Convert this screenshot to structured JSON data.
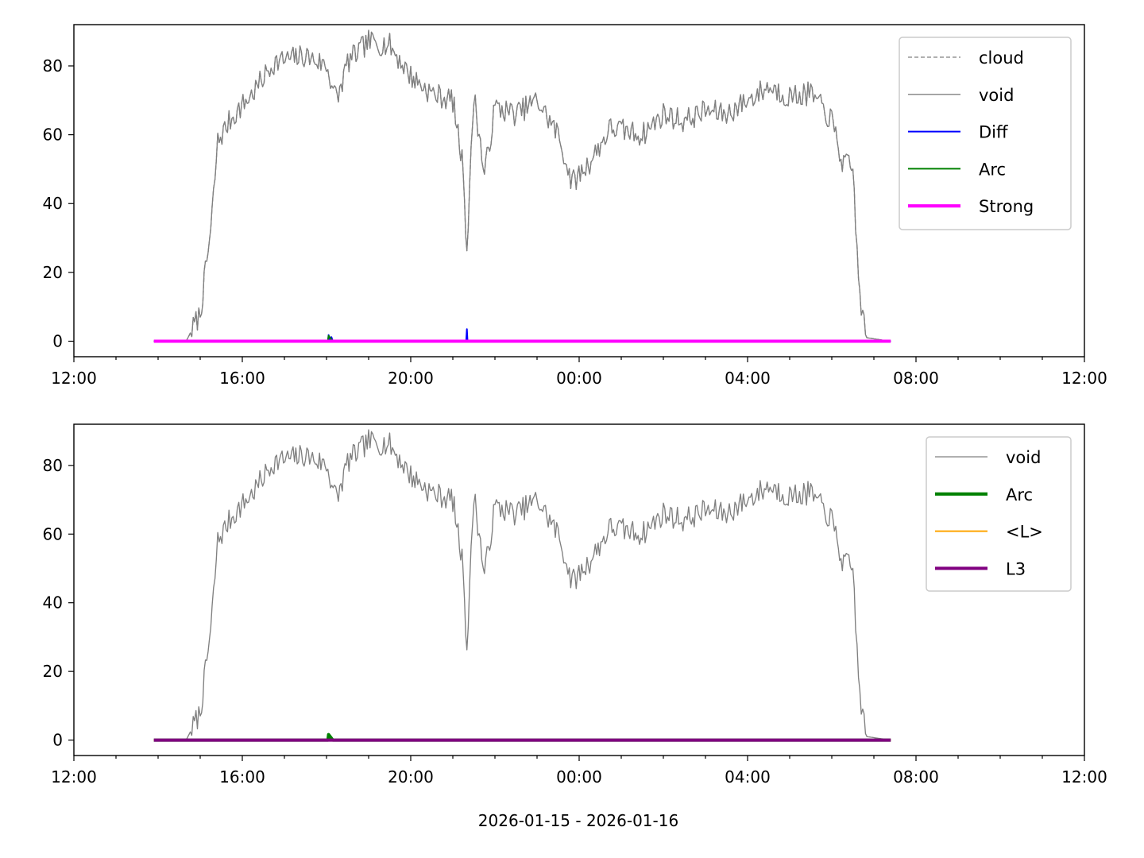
{
  "figure": {
    "xlabel": "2026-01-15 - 2026-01-16"
  },
  "chart_data": [
    {
      "type": "line",
      "x_ticks": [
        "12:00",
        "16:00",
        "20:00",
        "00:00",
        "04:00",
        "08:00",
        "12:00"
      ],
      "xlim": [
        "2026-01-15 12:00",
        "2026-01-16 12:00"
      ],
      "y_ticks": [
        "0",
        "20",
        "40",
        "60",
        "80"
      ],
      "ylim": [
        -4.5,
        92
      ],
      "legend_position": "upper right",
      "series": [
        {
          "name": "cloud",
          "color": "#808080",
          "style": "dashed",
          "width": 1,
          "points": [
            [
              "2026-01-15 13:54",
              0
            ],
            [
              "2026-01-15 14:40",
              0
            ],
            [
              "2026-01-15 15:00",
              8
            ],
            [
              "2026-01-15 15:15",
              32
            ],
            [
              "2026-01-15 15:25",
              58
            ],
            [
              "2026-01-15 15:45",
              65
            ],
            [
              "2026-01-15 16:15",
              72
            ],
            [
              "2026-01-15 16:45",
              81
            ],
            [
              "2026-01-15 17:30",
              83
            ],
            [
              "2026-01-15 18:00",
              80
            ],
            [
              "2026-01-15 18:15",
              70
            ],
            [
              "2026-01-15 18:30",
              81
            ],
            [
              "2026-01-15 19:00",
              87
            ],
            [
              "2026-01-15 19:30",
              86
            ],
            [
              "2026-01-15 20:00",
              77
            ],
            [
              "2026-01-15 20:30",
              72
            ],
            [
              "2026-01-15 21:00",
              70
            ],
            [
              "2026-01-15 21:15",
              50
            ],
            [
              "2026-01-15 21:20",
              26
            ],
            [
              "2026-01-15 21:30",
              72
            ],
            [
              "2026-01-15 21:45",
              48
            ],
            [
              "2026-01-15 22:00",
              68
            ],
            [
              "2026-01-15 22:30",
              66
            ],
            [
              "2026-01-15 23:00",
              70
            ],
            [
              "2026-01-15 23:30",
              60
            ],
            [
              "2026-01-15 23:50",
              46
            ],
            [
              "2026-01-16 00:15",
              52
            ],
            [
              "2026-01-16 00:45",
              62
            ],
            [
              "2026-01-16 01:30",
              60
            ],
            [
              "2026-01-16 02:00",
              66
            ],
            [
              "2026-01-16 02:30",
              64
            ],
            [
              "2026-01-16 03:00",
              67
            ],
            [
              "2026-01-16 03:30",
              66
            ],
            [
              "2026-01-16 04:00",
              70
            ],
            [
              "2026-01-16 04:30",
              74
            ],
            [
              "2026-01-16 05:00",
              71
            ],
            [
              "2026-01-16 05:30",
              72
            ],
            [
              "2026-01-16 06:00",
              64
            ],
            [
              "2026-01-16 06:15",
              52
            ],
            [
              "2026-01-16 06:30",
              50
            ],
            [
              "2026-01-16 06:40",
              12
            ],
            [
              "2026-01-16 06:50",
              1
            ],
            [
              "2026-01-16 07:24",
              0
            ]
          ]
        },
        {
          "name": "void",
          "color": "#808080",
          "style": "solid",
          "width": 1,
          "points": [
            [
              "2026-01-15 13:54",
              0
            ],
            [
              "2026-01-15 14:40",
              0
            ],
            [
              "2026-01-15 15:00",
              8
            ],
            [
              "2026-01-15 15:15",
              32
            ],
            [
              "2026-01-15 15:25",
              58
            ],
            [
              "2026-01-15 15:45",
              65
            ],
            [
              "2026-01-15 16:15",
              72
            ],
            [
              "2026-01-15 16:45",
              81
            ],
            [
              "2026-01-15 17:30",
              83
            ],
            [
              "2026-01-15 18:00",
              80
            ],
            [
              "2026-01-15 18:15",
              70
            ],
            [
              "2026-01-15 18:30",
              81
            ],
            [
              "2026-01-15 19:00",
              87
            ],
            [
              "2026-01-15 19:30",
              86
            ],
            [
              "2026-01-15 20:00",
              77
            ],
            [
              "2026-01-15 20:30",
              72
            ],
            [
              "2026-01-15 21:00",
              70
            ],
            [
              "2026-01-15 21:15",
              50
            ],
            [
              "2026-01-15 21:20",
              26
            ],
            [
              "2026-01-15 21:30",
              72
            ],
            [
              "2026-01-15 21:45",
              48
            ],
            [
              "2026-01-15 22:00",
              68
            ],
            [
              "2026-01-15 22:30",
              66
            ],
            [
              "2026-01-15 23:00",
              70
            ],
            [
              "2026-01-15 23:30",
              60
            ],
            [
              "2026-01-15 23:50",
              46
            ],
            [
              "2026-01-16 00:15",
              52
            ],
            [
              "2026-01-16 00:45",
              62
            ],
            [
              "2026-01-16 01:30",
              60
            ],
            [
              "2026-01-16 02:00",
              66
            ],
            [
              "2026-01-16 02:30",
              64
            ],
            [
              "2026-01-16 03:00",
              67
            ],
            [
              "2026-01-16 03:30",
              66
            ],
            [
              "2026-01-16 04:00",
              70
            ],
            [
              "2026-01-16 04:30",
              74
            ],
            [
              "2026-01-16 05:00",
              71
            ],
            [
              "2026-01-16 05:30",
              72
            ],
            [
              "2026-01-16 06:00",
              64
            ],
            [
              "2026-01-16 06:15",
              52
            ],
            [
              "2026-01-16 06:30",
              50
            ],
            [
              "2026-01-16 06:40",
              12
            ],
            [
              "2026-01-16 06:50",
              1
            ],
            [
              "2026-01-16 07:24",
              0
            ]
          ]
        },
        {
          "name": "Diff",
          "color": "#0000ff",
          "style": "solid",
          "width": 1.5,
          "points": [
            [
              "2026-01-15 13:54",
              0
            ],
            [
              "2026-01-15 18:02",
              0
            ],
            [
              "2026-01-15 18:03",
              1.8
            ],
            [
              "2026-01-15 18:05",
              0.3
            ],
            [
              "2026-01-15 18:07",
              1.2
            ],
            [
              "2026-01-15 18:09",
              0
            ],
            [
              "2026-01-15 21:19",
              0
            ],
            [
              "2026-01-15 21:20",
              3.5
            ],
            [
              "2026-01-15 21:21",
              0
            ],
            [
              "2026-01-16 07:24",
              0
            ]
          ]
        },
        {
          "name": "Arc",
          "color": "#008000",
          "style": "solid",
          "width": 1.5,
          "points": [
            [
              "2026-01-15 13:54",
              0
            ],
            [
              "2026-01-15 18:02",
              0
            ],
            [
              "2026-01-15 18:03",
              1.6
            ],
            [
              "2026-01-15 18:06",
              0.8
            ],
            [
              "2026-01-15 18:09",
              0
            ],
            [
              "2026-01-16 07:24",
              0
            ]
          ]
        },
        {
          "name": "Strong",
          "color": "#ff00ff",
          "style": "solid",
          "width": 3,
          "points": [
            [
              "2026-01-15 13:54",
              0
            ],
            [
              "2026-01-16 07:24",
              0
            ]
          ]
        }
      ]
    },
    {
      "type": "line",
      "x_ticks": [
        "12:00",
        "16:00",
        "20:00",
        "00:00",
        "04:00",
        "08:00",
        "12:00"
      ],
      "xlim": [
        "2026-01-15 12:00",
        "2026-01-16 12:00"
      ],
      "y_ticks": [
        "0",
        "20",
        "40",
        "60",
        "80"
      ],
      "ylim": [
        -4.5,
        92
      ],
      "legend_position": "upper right",
      "series": [
        {
          "name": "void",
          "color": "#808080",
          "style": "solid",
          "width": 1,
          "points": [
            [
              "2026-01-15 13:54",
              0
            ],
            [
              "2026-01-15 14:40",
              0
            ],
            [
              "2026-01-15 15:00",
              8
            ],
            [
              "2026-01-15 15:15",
              32
            ],
            [
              "2026-01-15 15:25",
              58
            ],
            [
              "2026-01-15 15:45",
              65
            ],
            [
              "2026-01-15 16:15",
              72
            ],
            [
              "2026-01-15 16:45",
              81
            ],
            [
              "2026-01-15 17:30",
              83
            ],
            [
              "2026-01-15 18:00",
              80
            ],
            [
              "2026-01-15 18:15",
              70
            ],
            [
              "2026-01-15 18:30",
              81
            ],
            [
              "2026-01-15 19:00",
              87
            ],
            [
              "2026-01-15 19:30",
              86
            ],
            [
              "2026-01-15 20:00",
              77
            ],
            [
              "2026-01-15 20:30",
              72
            ],
            [
              "2026-01-15 21:00",
              70
            ],
            [
              "2026-01-15 21:15",
              50
            ],
            [
              "2026-01-15 21:20",
              26
            ],
            [
              "2026-01-15 21:30",
              72
            ],
            [
              "2026-01-15 21:45",
              48
            ],
            [
              "2026-01-15 22:00",
              68
            ],
            [
              "2026-01-15 22:30",
              66
            ],
            [
              "2026-01-15 23:00",
              70
            ],
            [
              "2026-01-15 23:30",
              60
            ],
            [
              "2026-01-15 23:50",
              46
            ],
            [
              "2026-01-16 00:15",
              52
            ],
            [
              "2026-01-16 00:45",
              62
            ],
            [
              "2026-01-16 01:30",
              60
            ],
            [
              "2026-01-16 02:00",
              66
            ],
            [
              "2026-01-16 02:30",
              64
            ],
            [
              "2026-01-16 03:00",
              67
            ],
            [
              "2026-01-16 03:30",
              66
            ],
            [
              "2026-01-16 04:00",
              70
            ],
            [
              "2026-01-16 04:30",
              74
            ],
            [
              "2026-01-16 05:00",
              71
            ],
            [
              "2026-01-16 05:30",
              72
            ],
            [
              "2026-01-16 06:00",
              64
            ],
            [
              "2026-01-16 06:15",
              52
            ],
            [
              "2026-01-16 06:30",
              50
            ],
            [
              "2026-01-16 06:40",
              12
            ],
            [
              "2026-01-16 06:50",
              1
            ],
            [
              "2026-01-16 07:24",
              0
            ]
          ]
        },
        {
          "name": "Arc",
          "color": "#008000",
          "style": "solid",
          "width": 3,
          "points": [
            [
              "2026-01-15 13:54",
              0
            ],
            [
              "2026-01-15 18:02",
              0
            ],
            [
              "2026-01-15 18:03",
              1.6
            ],
            [
              "2026-01-15 18:06",
              0.8
            ],
            [
              "2026-01-15 18:09",
              0
            ],
            [
              "2026-01-16 07:24",
              0
            ]
          ]
        },
        {
          "name": "<L>",
          "color": "#ffa500",
          "style": "solid",
          "width": 1.5,
          "points": [
            [
              "2026-01-15 13:54",
              0
            ],
            [
              "2026-01-16 07:24",
              0
            ]
          ]
        },
        {
          "name": "L3",
          "color": "#800080",
          "style": "solid",
          "width": 3,
          "points": [
            [
              "2026-01-15 13:54",
              0
            ],
            [
              "2026-01-16 07:24",
              0
            ]
          ]
        }
      ]
    }
  ]
}
